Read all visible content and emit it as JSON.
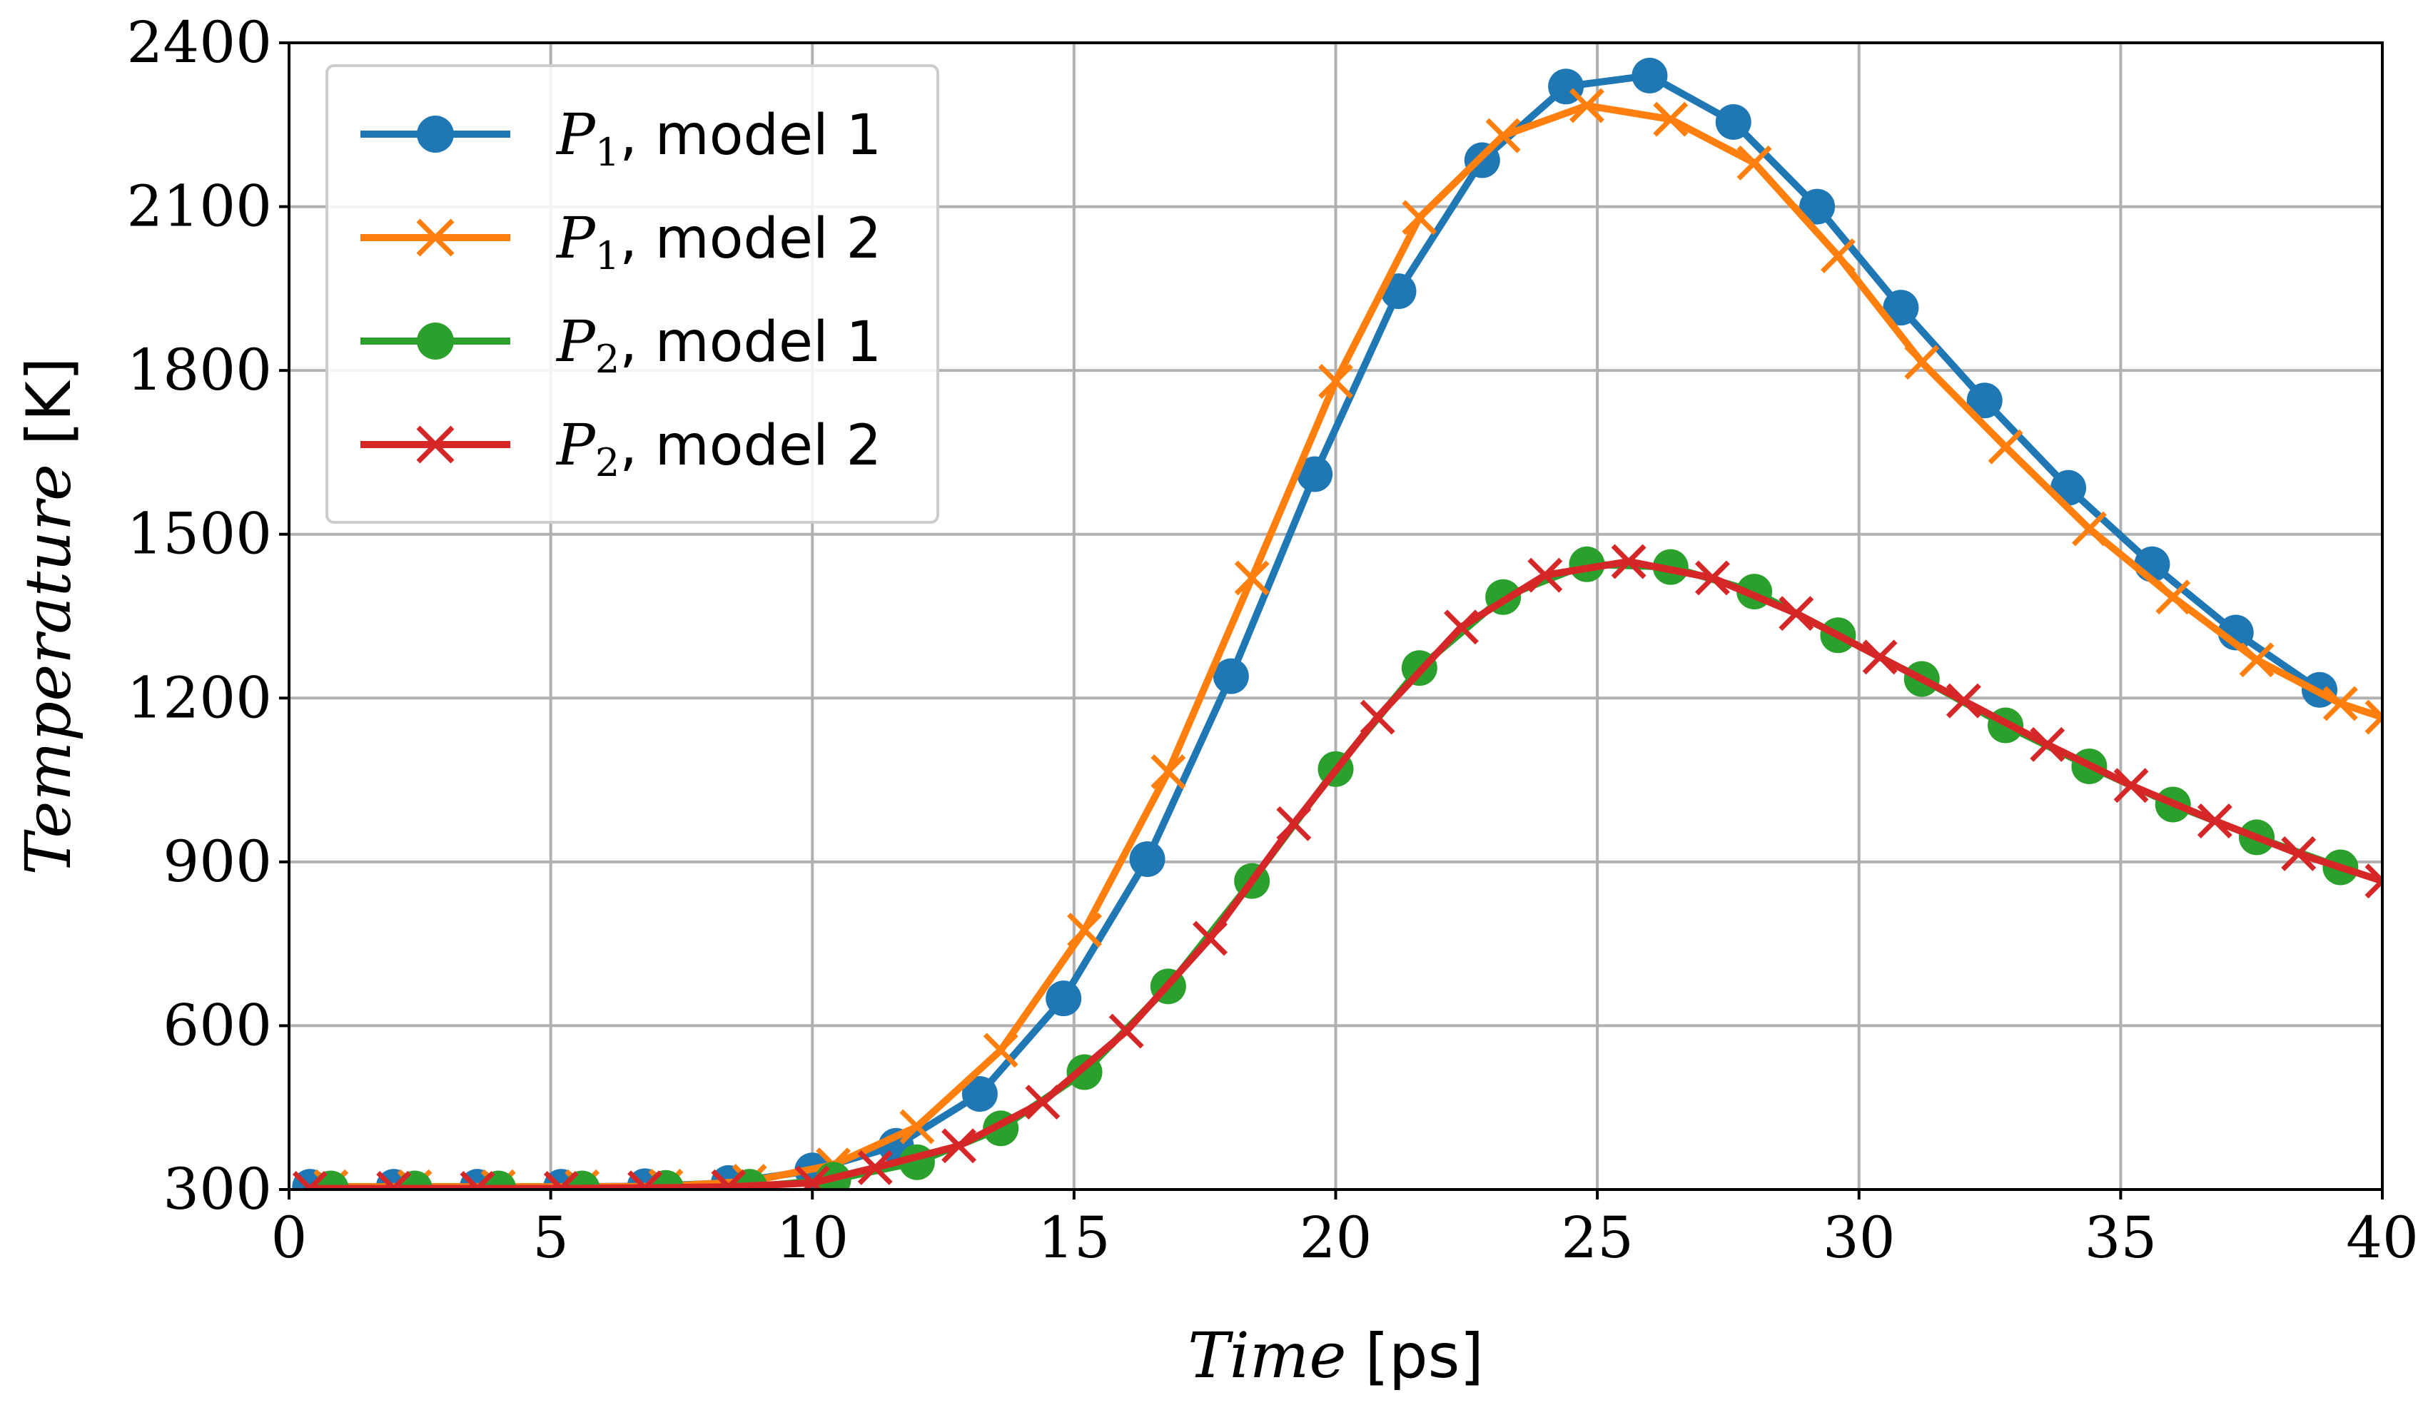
{
  "chart_data": {
    "type": "line",
    "xlabel": "Time",
    "xunit": "[ps]",
    "ylabel": "Temperature",
    "yunit": "[K]",
    "xlim": [
      0,
      40
    ],
    "ylim": [
      300,
      2400
    ],
    "xticks": [
      0,
      5,
      10,
      15,
      20,
      25,
      30,
      35,
      40
    ],
    "yticks": [
      300,
      600,
      900,
      1200,
      1500,
      1800,
      2100,
      2400
    ],
    "grid": true,
    "legend_position": "top-left",
    "series": [
      {
        "name": "P1, model 1",
        "symbol": "P",
        "subscript": "1",
        "model_label": ", model 1",
        "color": "#1f77b4",
        "marker": "circle",
        "x": [
          0.4,
          2.0,
          3.6,
          5.2,
          6.8,
          8.4,
          10.0,
          11.6,
          13.2,
          14.8,
          16.4,
          18.0,
          19.6,
          21.2,
          22.8,
          24.4,
          26.0,
          27.6,
          29.2,
          30.8,
          32.4,
          34.0,
          35.6,
          37.2,
          38.8
        ],
        "y": [
          305,
          305,
          305,
          305,
          306,
          312,
          335,
          380,
          475,
          650,
          905,
          1240,
          1610,
          1945,
          2185,
          2320,
          2340,
          2255,
          2100,
          1915,
          1745,
          1585,
          1445,
          1320,
          1215
        ]
      },
      {
        "name": "P1, model 2",
        "symbol": "P",
        "subscript": "1",
        "model_label": ", model 2",
        "color": "#ff7f0e",
        "marker": "x",
        "x": [
          0.8,
          2.4,
          4.0,
          5.6,
          7.2,
          8.8,
          10.4,
          12.0,
          13.6,
          15.2,
          16.8,
          18.4,
          20.0,
          21.6,
          23.2,
          24.8,
          26.4,
          28.0,
          29.6,
          31.2,
          32.8,
          34.4,
          36.0,
          37.6,
          39.2,
          40.0
        ],
        "y": [
          305,
          305,
          305,
          305,
          306,
          315,
          345,
          415,
          555,
          775,
          1065,
          1420,
          1780,
          2080,
          2230,
          2285,
          2260,
          2180,
          2010,
          1815,
          1660,
          1510,
          1385,
          1270,
          1190,
          1165
        ]
      },
      {
        "name": "P2, model 1",
        "symbol": "P",
        "subscript": "2",
        "model_label": ", model 1",
        "color": "#2ca02c",
        "marker": "circle",
        "x": [
          0.8,
          2.4,
          4.0,
          5.6,
          7.2,
          8.8,
          10.4,
          12.0,
          13.6,
          15.2,
          16.8,
          18.4,
          20.0,
          21.6,
          23.2,
          24.8,
          26.4,
          28.0,
          29.6,
          31.2,
          32.8,
          34.4,
          36.0,
          37.6,
          39.2
        ],
        "y": [
          302,
          302,
          302,
          302,
          303,
          305,
          318,
          350,
          412,
          515,
          672,
          865,
          1070,
          1255,
          1385,
          1445,
          1440,
          1395,
          1315,
          1235,
          1150,
          1075,
          1005,
          945,
          890
        ]
      },
      {
        "name": "P2, model 2",
        "symbol": "P",
        "subscript": "2",
        "model_label": ", model 2",
        "color": "#d62728",
        "marker": "x",
        "x": [
          0.4,
          2.0,
          3.6,
          5.2,
          6.8,
          8.4,
          10.0,
          11.2,
          12.8,
          14.4,
          16.0,
          17.6,
          19.2,
          20.8,
          22.4,
          24.0,
          25.6,
          27.2,
          28.8,
          30.4,
          32.0,
          33.6,
          35.2,
          36.8,
          38.4,
          40.0
        ],
        "y": [
          302,
          302,
          302,
          302,
          303,
          305,
          312,
          340,
          380,
          460,
          590,
          760,
          970,
          1165,
          1330,
          1425,
          1450,
          1420,
          1355,
          1275,
          1195,
          1115,
          1040,
          975,
          915,
          865
        ]
      }
    ]
  }
}
